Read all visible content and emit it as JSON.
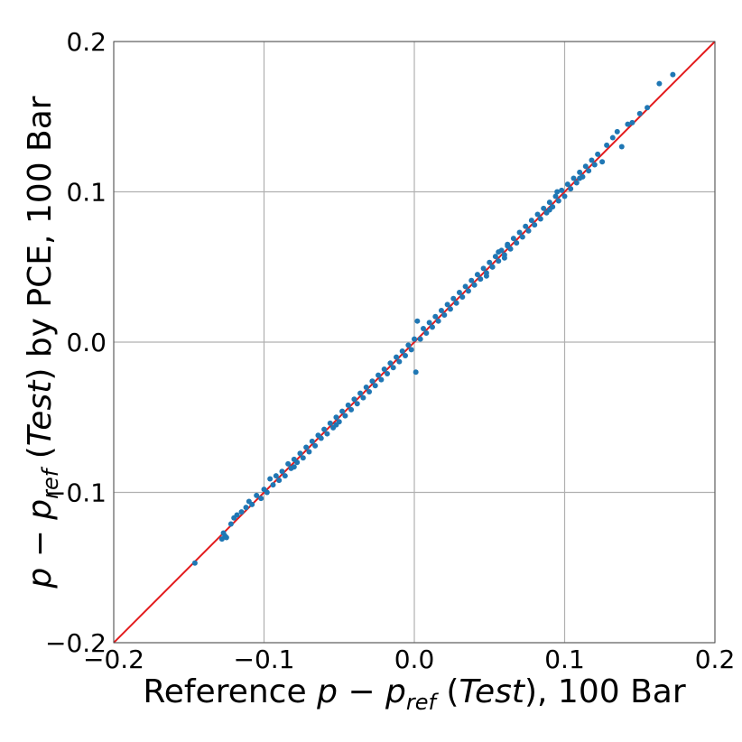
{
  "chart_data": {
    "type": "scatter",
    "xlabel_parts": {
      "prefix": "Reference ",
      "var": "p",
      "minus": " − ",
      "var2": "p",
      "sub": "ref",
      "paren_open": " (",
      "italic_word": "Test",
      "paren_close": "), 100 Bar"
    },
    "ylabel_parts": {
      "var": "p",
      "minus": " − ",
      "var2": "p",
      "sub": "ref",
      "paren_open": " (",
      "italic_word": "Test",
      "paren_close": ") by PCE, 100 Bar"
    },
    "xlim": [
      -0.2,
      0.2
    ],
    "ylim": [
      -0.2,
      0.2
    ],
    "x_ticks": [
      -0.2,
      -0.1,
      0.0,
      0.1,
      0.2
    ],
    "y_ticks": [
      -0.2,
      -0.1,
      0.0,
      0.1,
      0.2
    ],
    "x_tick_labels": [
      "−0.2",
      "−0.1",
      "0.0",
      "0.1",
      "0.2"
    ],
    "y_tick_labels": [
      "−0.2",
      "−0.1",
      "0.0",
      "0.1",
      "0.2"
    ],
    "grid": true,
    "reference_line": {
      "x": [
        -0.2,
        0.2
      ],
      "y": [
        -0.2,
        0.2
      ],
      "color": "#e31a1c"
    },
    "point_color": "#1f77b4",
    "points": [
      [
        -0.146,
        -0.147
      ],
      [
        -0.128,
        -0.131
      ],
      [
        -0.127,
        -0.127
      ],
      [
        -0.126,
        -0.129
      ],
      [
        -0.125,
        -0.13
      ],
      [
        -0.122,
        -0.121
      ],
      [
        -0.118,
        -0.115
      ],
      [
        -0.115,
        -0.113
      ],
      [
        -0.112,
        -0.11
      ],
      [
        -0.11,
        -0.106
      ],
      [
        -0.108,
        -0.108
      ],
      [
        -0.105,
        -0.102
      ],
      [
        -0.102,
        -0.104
      ],
      [
        -0.1,
        -0.098
      ],
      [
        -0.098,
        -0.1
      ],
      [
        -0.096,
        -0.091
      ],
      [
        -0.094,
        -0.095
      ],
      [
        -0.092,
        -0.089
      ],
      [
        -0.09,
        -0.092
      ],
      [
        -0.088,
        -0.086
      ],
      [
        -0.086,
        -0.089
      ],
      [
        -0.084,
        -0.081
      ],
      [
        -0.082,
        -0.084
      ],
      [
        -0.08,
        -0.078
      ],
      [
        -0.078,
        -0.08
      ],
      [
        -0.076,
        -0.074
      ],
      [
        -0.074,
        -0.077
      ],
      [
        -0.072,
        -0.07
      ],
      [
        -0.07,
        -0.073
      ],
      [
        -0.068,
        -0.066
      ],
      [
        -0.066,
        -0.069
      ],
      [
        -0.064,
        -0.062
      ],
      [
        -0.062,
        -0.064
      ],
      [
        -0.06,
        -0.058
      ],
      [
        -0.058,
        -0.061
      ],
      [
        -0.056,
        -0.054
      ],
      [
        -0.054,
        -0.057
      ],
      [
        -0.052,
        -0.05
      ],
      [
        -0.05,
        -0.053
      ],
      [
        -0.048,
        -0.046
      ],
      [
        -0.046,
        -0.049
      ],
      [
        -0.044,
        -0.042
      ],
      [
        -0.042,
        -0.045
      ],
      [
        -0.04,
        -0.038
      ],
      [
        -0.038,
        -0.041
      ],
      [
        -0.036,
        -0.034
      ],
      [
        -0.034,
        -0.037
      ],
      [
        -0.032,
        -0.03
      ],
      [
        -0.03,
        -0.033
      ],
      [
        -0.028,
        -0.026
      ],
      [
        -0.026,
        -0.029
      ],
      [
        -0.024,
        -0.022
      ],
      [
        -0.022,
        -0.025
      ],
      [
        -0.02,
        -0.018
      ],
      [
        -0.018,
        -0.021
      ],
      [
        -0.016,
        -0.014
      ],
      [
        -0.014,
        -0.017
      ],
      [
        -0.012,
        -0.01
      ],
      [
        -0.01,
        -0.013
      ],
      [
        -0.008,
        -0.006
      ],
      [
        -0.006,
        -0.009
      ],
      [
        -0.004,
        -0.002
      ],
      [
        -0.002,
        -0.005
      ],
      [
        0.0,
        0.002
      ],
      [
        0.001,
        -0.02
      ],
      [
        0.002,
        0.014
      ],
      [
        0.004,
        0.002
      ],
      [
        0.006,
        0.009
      ],
      [
        0.008,
        0.006
      ],
      [
        0.01,
        0.013
      ],
      [
        0.012,
        0.01
      ],
      [
        0.014,
        0.017
      ],
      [
        0.016,
        0.014
      ],
      [
        0.018,
        0.021
      ],
      [
        0.02,
        0.018
      ],
      [
        0.022,
        0.025
      ],
      [
        0.024,
        0.022
      ],
      [
        0.026,
        0.029
      ],
      [
        0.028,
        0.026
      ],
      [
        0.03,
        0.033
      ],
      [
        0.032,
        0.03
      ],
      [
        0.034,
        0.037
      ],
      [
        0.036,
        0.034
      ],
      [
        0.038,
        0.041
      ],
      [
        0.04,
        0.038
      ],
      [
        0.042,
        0.045
      ],
      [
        0.044,
        0.042
      ],
      [
        0.046,
        0.049
      ],
      [
        0.048,
        0.046
      ],
      [
        0.05,
        0.053
      ],
      [
        0.052,
        0.05
      ],
      [
        0.054,
        0.057
      ],
      [
        0.056,
        0.054
      ],
      [
        0.058,
        0.061
      ],
      [
        0.06,
        0.058
      ],
      [
        0.062,
        0.065
      ],
      [
        0.064,
        0.062
      ],
      [
        0.066,
        0.069
      ],
      [
        0.068,
        0.066
      ],
      [
        0.07,
        0.073
      ],
      [
        0.072,
        0.07
      ],
      [
        0.074,
        0.077
      ],
      [
        0.076,
        0.074
      ],
      [
        0.078,
        0.081
      ],
      [
        0.08,
        0.078
      ],
      [
        0.082,
        0.085
      ],
      [
        0.084,
        0.082
      ],
      [
        0.086,
        0.089
      ],
      [
        0.088,
        0.086
      ],
      [
        0.09,
        0.093
      ],
      [
        0.092,
        0.09
      ],
      [
        0.094,
        0.097
      ],
      [
        0.096,
        0.094
      ],
      [
        0.098,
        0.101
      ],
      [
        0.1,
        0.097
      ],
      [
        0.102,
        0.105
      ],
      [
        0.104,
        0.102
      ],
      [
        0.106,
        0.109
      ],
      [
        0.108,
        0.106
      ],
      [
        0.11,
        0.113
      ],
      [
        0.112,
        0.11
      ],
      [
        0.114,
        0.117
      ],
      [
        0.116,
        0.114
      ],
      [
        0.118,
        0.121
      ],
      [
        0.12,
        0.118
      ],
      [
        0.122,
        0.125
      ],
      [
        0.125,
        0.12
      ],
      [
        0.128,
        0.131
      ],
      [
        0.132,
        0.136
      ],
      [
        0.135,
        0.14
      ],
      [
        0.138,
        0.13
      ],
      [
        0.142,
        0.145
      ],
      [
        0.145,
        0.146
      ],
      [
        0.15,
        0.152
      ],
      [
        0.155,
        0.156
      ],
      [
        0.163,
        0.172
      ],
      [
        0.172,
        0.178
      ],
      [
        0.052,
        0.05
      ],
      [
        0.048,
        0.044
      ],
      [
        -0.052,
        -0.055
      ],
      [
        0.056,
        0.06
      ],
      [
        0.06,
        0.056
      ],
      [
        -0.08,
        -0.083
      ],
      [
        0.11,
        0.109
      ],
      [
        0.09,
        0.088
      ],
      [
        0.095,
        0.1
      ],
      [
        -0.12,
        -0.117
      ],
      [
        0.062,
        0.064
      ]
    ]
  }
}
